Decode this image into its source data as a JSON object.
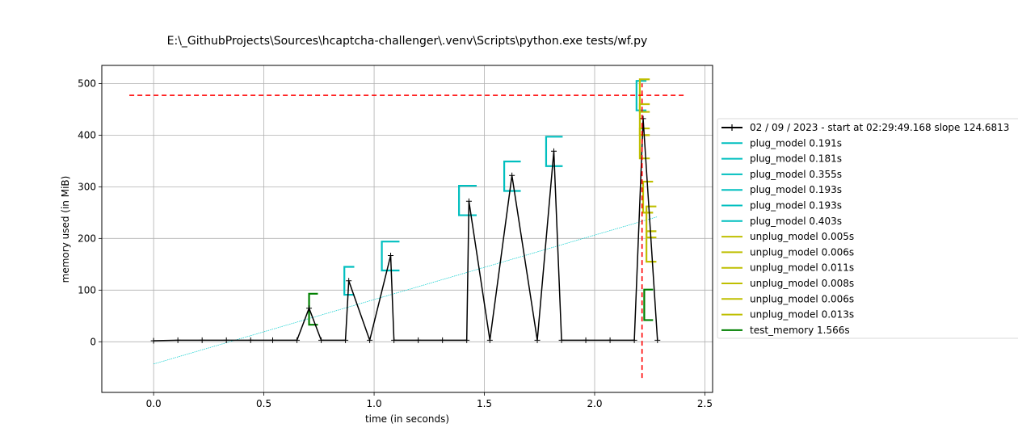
{
  "chart_data": {
    "type": "line",
    "title": "E:\\_GithubProjects\\Sources\\hcaptcha-challenger\\.venv\\Scripts\\python.exe tests/wf.py",
    "xlabel": "time (in seconds)",
    "ylabel": "memory used (in MiB)",
    "xlim": [
      -0.235,
      2.535
    ],
    "ylim": [
      -98,
      535
    ],
    "xticks": [
      0.0,
      0.5,
      1.0,
      1.5,
      2.0,
      2.5
    ],
    "xtick_labels": [
      "0.0",
      "0.5",
      "1.0",
      "1.5",
      "2.0",
      "2.5"
    ],
    "yticks": [
      0,
      100,
      200,
      300,
      400,
      500
    ],
    "ytick_labels": [
      "0",
      "100",
      "200",
      "300",
      "400",
      "500"
    ],
    "grid": true,
    "legend_position": "right, outside plot",
    "memory_series": {
      "name": "02 / 09 / 2023 - start at 02:29:49.168 slope 124.6813",
      "color": "#000000",
      "x": [
        0.0,
        0.11,
        0.22,
        0.33,
        0.44,
        0.54,
        0.65,
        0.705,
        0.76,
        0.87,
        0.885,
        0.98,
        1.075,
        1.09,
        1.2,
        1.31,
        1.42,
        1.43,
        1.525,
        1.625,
        1.74,
        1.815,
        1.85,
        1.96,
        2.07,
        2.18,
        2.22,
        2.285
      ],
      "y": [
        2,
        3,
        3,
        3,
        3,
        3,
        3,
        65,
        3,
        3,
        118,
        3,
        167,
        3,
        3,
        3,
        3,
        272,
        3,
        322,
        3,
        369,
        3,
        3,
        3,
        3,
        432,
        3
      ]
    },
    "slope_line": {
      "color": "#00cccc",
      "x": [
        0.0,
        2.285
      ],
      "y": [
        -43,
        242
      ]
    },
    "peak_line": {
      "color": "#ff0000",
      "y": 477,
      "x_range": [
        -0.11,
        2.41
      ]
    },
    "end_line": {
      "color": "#ff0000",
      "x": 2.215,
      "y_range": [
        -70,
        500
      ]
    },
    "brackets": [
      {
        "name": "plug_model 0.191s",
        "color": "#00bfbf",
        "x_start": 0.865,
        "x_end": 0.91,
        "y_low": 91,
        "y_high": 145
      },
      {
        "name": "plug_model 0.181s",
        "color": "#00bfbf",
        "x_start": 1.035,
        "x_end": 1.115,
        "y_low": 138,
        "y_high": 194
      },
      {
        "name": "plug_model 0.355s",
        "color": "#00bfbf",
        "x_start": 1.385,
        "x_end": 1.465,
        "y_low": 245,
        "y_high": 302
      },
      {
        "name": "plug_model 0.193s",
        "color": "#00bfbf",
        "x_start": 1.59,
        "x_end": 1.665,
        "y_low": 292,
        "y_high": 349
      },
      {
        "name": "plug_model 0.193s",
        "color": "#00bfbf",
        "x_start": 1.78,
        "x_end": 1.855,
        "y_low": 340,
        "y_high": 397
      },
      {
        "name": "plug_model 0.403s",
        "color": "#00bfbf",
        "x_start": 2.19,
        "x_end": 2.235,
        "y_low": 448,
        "y_high": 505
      },
      {
        "name": "unplug_model 0.005s",
        "color": "#bfbf00",
        "x_start": 2.205,
        "x_end": 2.25,
        "y_low": 445,
        "y_high": 508
      },
      {
        "name": "unplug_model 0.006s",
        "color": "#bfbf00",
        "x_start": 2.205,
        "x_end": 2.25,
        "y_low": 400,
        "y_high": 460
      },
      {
        "name": "unplug_model 0.011s",
        "color": "#bfbf00",
        "x_start": 2.205,
        "x_end": 2.25,
        "y_low": 355,
        "y_high": 413
      },
      {
        "name": "unplug_model 0.008s",
        "color": "#bfbf00",
        "x_start": 2.22,
        "x_end": 2.265,
        "y_low": 250,
        "y_high": 310
      },
      {
        "name": "unplug_model 0.006s",
        "color": "#bfbf00",
        "x_start": 2.235,
        "x_end": 2.28,
        "y_low": 202,
        "y_high": 262
      },
      {
        "name": "unplug_model 0.013s",
        "color": "#bfbf00",
        "x_start": 2.235,
        "x_end": 2.28,
        "y_low": 155,
        "y_high": 214
      },
      {
        "name": "test_memory 1.566s",
        "color": "#008000",
        "x_start": 0.705,
        "x_end": 0.745,
        "y_low": 33,
        "y_high": 93
      },
      {
        "name": "test_memory 1.566s",
        "color": "#008000",
        "x_start": 2.225,
        "x_end": 2.265,
        "y_low": 42,
        "y_high": 101
      }
    ],
    "legend": [
      {
        "label": "02 / 09 / 2023 - start at 02:29:49.168 slope 124.6813",
        "color": "#000000",
        "marker": "plus"
      },
      {
        "label": "plug_model 0.191s",
        "color": "#00bfbf"
      },
      {
        "label": "plug_model 0.181s",
        "color": "#00bfbf"
      },
      {
        "label": "plug_model 0.355s",
        "color": "#00bfbf"
      },
      {
        "label": "plug_model 0.193s",
        "color": "#00bfbf"
      },
      {
        "label": "plug_model 0.193s",
        "color": "#00bfbf"
      },
      {
        "label": "plug_model 0.403s",
        "color": "#00bfbf"
      },
      {
        "label": "unplug_model 0.005s",
        "color": "#bfbf00"
      },
      {
        "label": "unplug_model 0.006s",
        "color": "#bfbf00"
      },
      {
        "label": "unplug_model 0.011s",
        "color": "#bfbf00"
      },
      {
        "label": "unplug_model 0.008s",
        "color": "#bfbf00"
      },
      {
        "label": "unplug_model 0.006s",
        "color": "#bfbf00"
      },
      {
        "label": "unplug_model 0.013s",
        "color": "#bfbf00"
      },
      {
        "label": "test_memory 1.566s",
        "color": "#008000"
      }
    ]
  }
}
